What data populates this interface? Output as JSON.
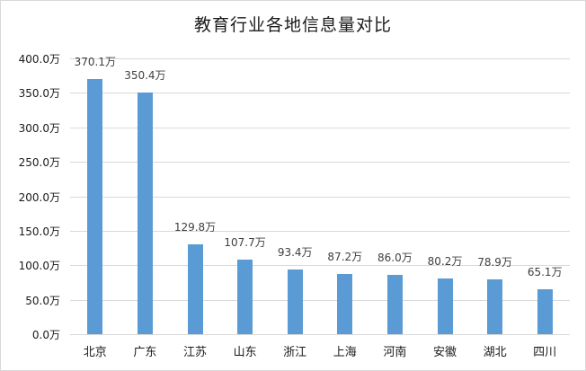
{
  "chart_data": {
    "type": "bar",
    "title": "教育行业各地信息量对比",
    "xlabel": "",
    "ylabel": "",
    "ylim": [
      0,
      400
    ],
    "grid": true,
    "legend": null,
    "y_ticks": [
      "0.0万",
      "50.0万",
      "100.0万",
      "150.0万",
      "200.0万",
      "250.0万",
      "300.0万",
      "350.0万",
      "400.0万"
    ],
    "categories": [
      "北京",
      "广东",
      "江苏",
      "山东",
      "浙江",
      "上海",
      "河南",
      "安徽",
      "湖北",
      "四川"
    ],
    "values": [
      370.1,
      350.4,
      129.8,
      107.7,
      93.4,
      87.2,
      86.0,
      80.2,
      78.9,
      65.1
    ],
    "data_labels": [
      "370.1万",
      "350.4万",
      "129.8万",
      "107.7万",
      "93.4万",
      "87.2万",
      "86.0万",
      "80.2万",
      "78.9万",
      "65.1万"
    ],
    "unit": "万",
    "bar_color": "#5b9bd5"
  }
}
